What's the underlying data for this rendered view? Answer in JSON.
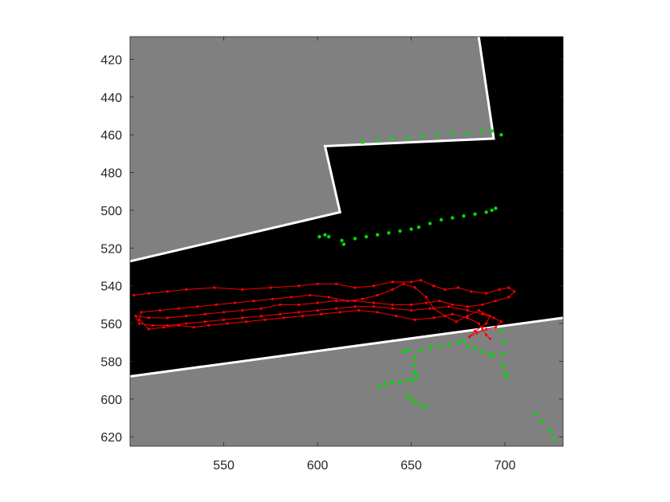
{
  "chart_data": {
    "type": "scatter",
    "xlim": [
      500,
      731
    ],
    "ylim": [
      408,
      625
    ],
    "y_reversed": true,
    "x_ticks": [
      550,
      600,
      650,
      700
    ],
    "y_ticks": [
      420,
      440,
      460,
      480,
      500,
      520,
      540,
      560,
      580,
      600,
      620
    ],
    "grid": false,
    "legend": "none",
    "background_image": "grayscale occupancy / range map",
    "map": {
      "gray_top_region": [
        [
          500,
          408
        ],
        [
          686,
          408
        ],
        [
          694,
          462
        ],
        [
          604,
          466
        ],
        [
          612,
          501
        ],
        [
          500,
          527
        ]
      ],
      "gray_bottom_region": [
        [
          500,
          588
        ],
        [
          731,
          557
        ],
        [
          731,
          625
        ],
        [
          500,
          625
        ]
      ],
      "white_edges": [
        [
          [
            500,
            527
          ],
          [
            612,
            501
          ],
          [
            604,
            466
          ],
          [
            694,
            462
          ],
          [
            686,
            408
          ]
        ],
        [
          [
            500,
            588
          ],
          [
            731,
            557
          ]
        ]
      ],
      "colors": {
        "gray": "#808080",
        "free": "#000000",
        "edge": "#ffffff"
      }
    },
    "series": [
      {
        "marker": "dot",
        "color": "#00dd00",
        "connected": false,
        "points": [
          [
            601,
            514
          ],
          [
            604,
            513
          ],
          [
            606,
            514
          ],
          [
            613,
            516
          ],
          [
            620,
            515
          ],
          [
            626,
            514
          ],
          [
            632,
            513
          ],
          [
            638,
            512
          ],
          [
            644,
            511
          ],
          [
            650,
            510
          ],
          [
            654,
            509
          ],
          [
            660,
            507
          ],
          [
            666,
            505
          ],
          [
            672,
            504
          ],
          [
            678,
            503
          ],
          [
            684,
            502
          ],
          [
            690,
            501
          ],
          [
            693,
            500
          ],
          [
            695,
            499
          ],
          [
            614,
            518
          ],
          [
            624,
            464
          ],
          [
            632,
            463
          ],
          [
            640,
            462
          ],
          [
            648,
            462
          ],
          [
            656,
            461
          ],
          [
            664,
            460
          ],
          [
            672,
            459
          ],
          [
            680,
            459
          ],
          [
            688,
            458
          ],
          [
            693,
            458
          ],
          [
            698,
            460
          ],
          [
            655,
            574
          ],
          [
            660,
            573
          ],
          [
            665,
            572
          ],
          [
            670,
            571
          ],
          [
            675,
            570
          ],
          [
            678,
            569
          ],
          [
            652,
            578
          ],
          [
            651,
            582
          ],
          [
            652,
            586
          ],
          [
            653,
            588
          ],
          [
            646,
            575
          ],
          [
            648,
            574
          ],
          [
            680,
            572
          ],
          [
            684,
            573
          ],
          [
            688,
            575
          ],
          [
            692,
            576
          ],
          [
            694,
            577
          ],
          [
            698,
            564
          ],
          [
            699,
            570
          ],
          [
            699,
            576
          ],
          [
            699,
            582
          ],
          [
            700,
            586
          ],
          [
            701,
            588
          ],
          [
            633,
            593
          ],
          [
            636,
            592
          ],
          [
            640,
            591
          ],
          [
            644,
            591
          ],
          [
            648,
            590
          ],
          [
            651,
            590
          ],
          [
            653,
            588
          ],
          [
            648,
            598
          ],
          [
            650,
            600
          ],
          [
            652,
            602
          ],
          [
            655,
            603
          ],
          [
            658,
            604
          ],
          [
            716,
            608
          ],
          [
            720,
            612
          ],
          [
            724,
            617
          ],
          [
            726,
            621
          ]
        ]
      },
      {
        "marker": "dot-line",
        "color": "#ff0000",
        "connected": true,
        "points": [
          [
            502,
            545
          ],
          [
            510,
            544
          ],
          [
            520,
            543
          ],
          [
            530,
            542
          ],
          [
            545,
            541
          ],
          [
            560,
            542
          ],
          [
            575,
            541
          ],
          [
            590,
            540
          ],
          [
            600,
            539
          ],
          [
            610,
            539
          ],
          [
            620,
            541
          ],
          [
            630,
            540
          ],
          [
            640,
            538
          ],
          [
            650,
            538
          ],
          [
            655,
            537
          ],
          [
            662,
            540
          ],
          [
            668,
            542
          ],
          [
            675,
            541
          ],
          [
            682,
            543
          ],
          [
            690,
            544
          ],
          [
            697,
            542
          ],
          [
            702,
            541
          ],
          [
            705,
            543
          ],
          [
            702,
            546
          ],
          [
            695,
            548
          ],
          [
            688,
            550
          ],
          [
            680,
            551
          ],
          [
            672,
            550
          ],
          [
            665,
            548
          ],
          [
            658,
            549
          ],
          [
            650,
            550
          ],
          [
            640,
            550
          ],
          [
            630,
            549
          ],
          [
            620,
            548
          ],
          [
            610,
            548
          ],
          [
            600,
            549
          ],
          [
            590,
            550
          ],
          [
            580,
            550
          ],
          [
            570,
            552
          ],
          [
            560,
            553
          ],
          [
            550,
            554
          ],
          [
            540,
            555
          ],
          [
            530,
            556
          ],
          [
            520,
            557
          ],
          [
            510,
            557
          ],
          [
            503,
            556
          ],
          [
            505,
            560
          ],
          [
            512,
            561
          ],
          [
            520,
            561
          ],
          [
            530,
            560
          ],
          [
            540,
            559
          ],
          [
            550,
            558
          ],
          [
            560,
            557
          ],
          [
            570,
            556
          ],
          [
            580,
            555
          ],
          [
            590,
            554
          ],
          [
            600,
            553
          ],
          [
            610,
            552
          ],
          [
            620,
            551
          ],
          [
            630,
            551
          ],
          [
            640,
            552
          ],
          [
            650,
            553
          ],
          [
            660,
            552
          ],
          [
            670,
            551
          ],
          [
            680,
            553
          ],
          [
            688,
            555
          ],
          [
            694,
            557
          ],
          [
            698,
            559
          ],
          [
            695,
            562
          ],
          [
            690,
            563
          ],
          [
            685,
            565
          ],
          [
            681,
            567
          ],
          [
            684,
            564
          ],
          [
            690,
            560
          ],
          [
            692,
            556
          ],
          [
            686,
            553
          ],
          [
            680,
            556
          ],
          [
            674,
            559
          ],
          [
            668,
            556
          ],
          [
            662,
            552
          ],
          [
            658,
            546
          ],
          [
            652,
            541
          ],
          [
            646,
            539
          ],
          [
            640,
            542
          ],
          [
            632,
            545
          ],
          [
            624,
            547
          ],
          [
            616,
            548
          ],
          [
            606,
            546
          ],
          [
            596,
            545
          ],
          [
            586,
            546
          ],
          [
            576,
            547
          ],
          [
            566,
            548
          ],
          [
            556,
            549
          ],
          [
            546,
            550
          ],
          [
            536,
            551
          ],
          [
            526,
            552
          ],
          [
            516,
            553
          ],
          [
            506,
            554
          ],
          [
            505,
            558
          ],
          [
            510,
            563
          ],
          [
            518,
            562
          ],
          [
            526,
            561
          ],
          [
            534,
            562
          ],
          [
            542,
            561
          ],
          [
            552,
            560
          ],
          [
            562,
            559
          ],
          [
            572,
            558
          ],
          [
            582,
            557
          ],
          [
            592,
            556
          ],
          [
            602,
            555
          ],
          [
            612,
            554
          ],
          [
            622,
            553
          ],
          [
            632,
            554
          ],
          [
            642,
            556
          ],
          [
            652,
            558
          ],
          [
            662,
            557
          ],
          [
            672,
            555
          ],
          [
            680,
            557
          ],
          [
            686,
            560
          ],
          [
            688,
            563
          ],
          [
            690,
            566
          ],
          [
            692,
            568
          ]
        ]
      }
    ]
  }
}
